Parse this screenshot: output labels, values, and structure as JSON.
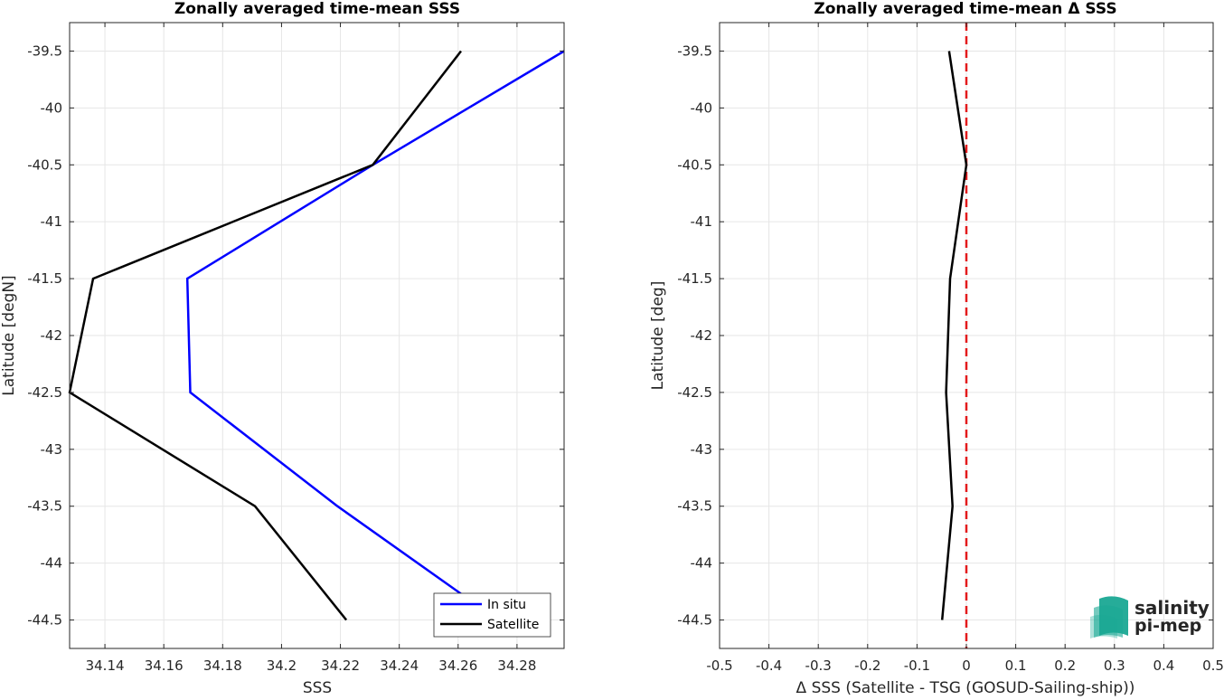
{
  "chart_data": [
    {
      "type": "line",
      "title": "Zonally averaged time-mean SSS",
      "xlabel": "SSS",
      "ylabel": "Latitude [degN]",
      "xlim": [
        34.128,
        34.296
      ],
      "ylim": [
        -44.75,
        -39.25
      ],
      "xticks": [
        34.14,
        34.16,
        34.18,
        34.2,
        34.22,
        34.24,
        34.26,
        34.28
      ],
      "xtick_labels": [
        "34.14",
        "34.16",
        "34.18",
        "34.2",
        "34.22",
        "34.24",
        "34.26",
        "34.28"
      ],
      "yticks": [
        -39.5,
        -40,
        -40.5,
        -41,
        -41.5,
        -42,
        -42.5,
        -43,
        -43.5,
        -44,
        -44.5
      ],
      "ytick_labels": [
        "-39.5",
        "-40",
        "-40.5",
        "-41",
        "-41.5",
        "-42",
        "-42.5",
        "-43",
        "-43.5",
        "-44",
        "-44.5"
      ],
      "grid": true,
      "legend_position": "bottom-right",
      "series": [
        {
          "name": "In situ",
          "color": "#0000ff",
          "x": [
            34.296,
            34.231,
            34.168,
            34.169,
            34.219,
            34.261
          ],
          "y": [
            -39.5,
            -40.5,
            -41.5,
            -42.5,
            -43.5,
            -44.27
          ]
        },
        {
          "name": "Satellite",
          "color": "#000000",
          "x": [
            34.261,
            34.231,
            34.136,
            34.128,
            34.191,
            34.222
          ],
          "y": [
            -39.5,
            -40.5,
            -41.5,
            -42.5,
            -43.5,
            -44.5
          ]
        }
      ]
    },
    {
      "type": "line",
      "title": "Zonally averaged time-mean Δ SSS",
      "xlabel": "Δ SSS (Satellite - TSG (GOSUD-Sailing-ship))",
      "ylabel": "Latitude [deg]",
      "xlim": [
        -0.5,
        0.5
      ],
      "ylim": [
        -44.75,
        -39.25
      ],
      "xticks": [
        -0.5,
        -0.4,
        -0.3,
        -0.2,
        -0.1,
        0,
        0.1,
        0.2,
        0.3,
        0.4,
        0.5
      ],
      "xtick_labels": [
        "-0.5",
        "-0.4",
        "-0.3",
        "-0.2",
        "-0.1",
        "0",
        "0.1",
        "0.2",
        "0.3",
        "0.4",
        "0.5"
      ],
      "yticks": [
        -39.5,
        -40,
        -40.5,
        -41,
        -41.5,
        -42,
        -42.5,
        -43,
        -43.5,
        -44,
        -44.5
      ],
      "ytick_labels": [
        "-39.5",
        "-40",
        "-40.5",
        "-41",
        "-41.5",
        "-42",
        "-42.5",
        "-43",
        "-43.5",
        "-44",
        "-44.5"
      ],
      "grid": true,
      "reference_line": {
        "x": 0,
        "color": "#e31a1c",
        "style": "dashed"
      },
      "series": [
        {
          "color": "#000000",
          "x": [
            -0.035,
            0.0,
            -0.033,
            -0.041,
            -0.028,
            -0.049
          ],
          "y": [
            -39.5,
            -40.5,
            -41.5,
            -42.5,
            -43.5,
            -44.5
          ]
        }
      ]
    }
  ],
  "logo": {
    "line1": "salinity",
    "line2": "pi-mep",
    "color": "#1aa894",
    "color_dark": "#0f6d66"
  }
}
